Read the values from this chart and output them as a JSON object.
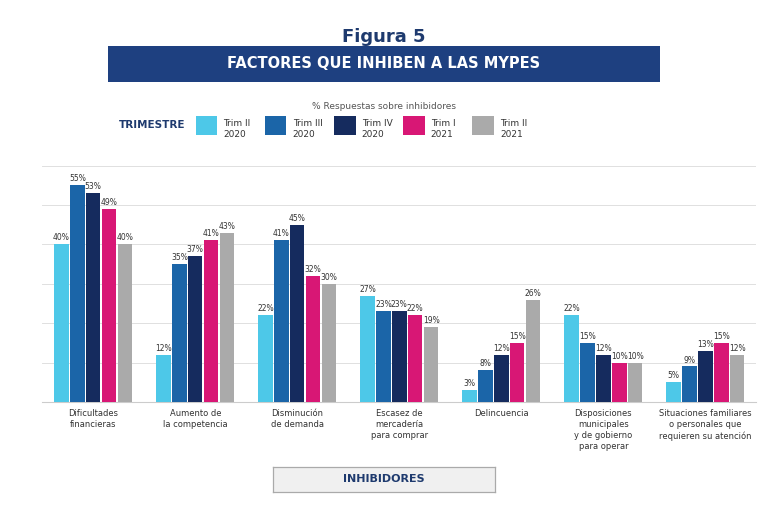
{
  "title": "Figura 5",
  "subtitle": "FACTORES QUE INHIBEN A LAS MYPES",
  "ylabel_note": "% Respuestas sobre inhibidores",
  "xlabel_label": "INHIBIDORES",
  "legend_title": "TRIMESTRE",
  "series": [
    {
      "label": "Trim II\n2020",
      "color": "#4DC8E8"
    },
    {
      "label": "Trim III\n2020",
      "color": "#1B65A8"
    },
    {
      "label": "Trim IV\n2020",
      "color": "#152B5E"
    },
    {
      "label": "Trim I\n2021",
      "color": "#D81775"
    },
    {
      "label": "Trim II\n2021",
      "color": "#AAAAAA"
    }
  ],
  "categories": [
    "Dificultades\nfinancieras",
    "Aumento de\nla competencia",
    "Disminución\nde demanda",
    "Escasez de\nmercadería\npara comprar",
    "Delincuencia",
    "Disposiciones\nmunicipales\ny de gobierno\npara operar",
    "Situaciones familiares\no personales que\nrequieren su atención"
  ],
  "values": [
    [
      40,
      55,
      53,
      49,
      40
    ],
    [
      12,
      35,
      37,
      41,
      43
    ],
    [
      22,
      41,
      45,
      32,
      30
    ],
    [
      27,
      23,
      23,
      22,
      19
    ],
    [
      3,
      8,
      12,
      15,
      26
    ],
    [
      22,
      15,
      12,
      10,
      10
    ],
    [
      5,
      9,
      13,
      15,
      12
    ]
  ],
  "background_color": "#FFFFFF",
  "subtitle_bg": "#1E4080",
  "subtitle_text_color": "#FFFFFF",
  "ylim": [
    0,
    65
  ],
  "grid_color": "#E0E0E0",
  "label_font_size": 5.5,
  "bar_value_fontsize": 5.5,
  "cat_fontsize": 6.0
}
